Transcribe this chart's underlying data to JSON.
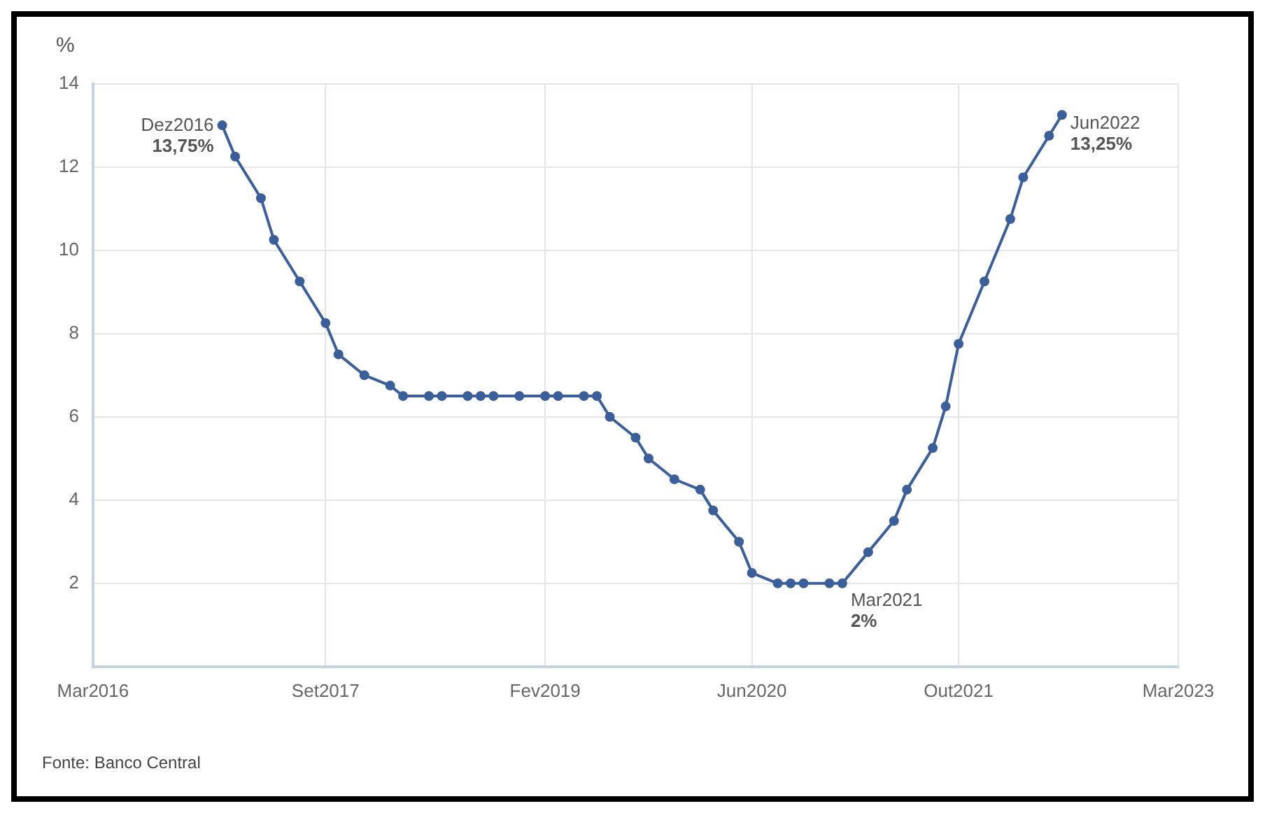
{
  "chart_data": {
    "type": "line",
    "ylabel": "%",
    "x": [
      "2017-01",
      "2017-02",
      "2017-04",
      "2017-05",
      "2017-07",
      "2017-09",
      "2017-10",
      "2017-12",
      "2018-02",
      "2018-03",
      "2018-05",
      "2018-06",
      "2018-08",
      "2018-09",
      "2018-10",
      "2018-12",
      "2019-02",
      "2019-03",
      "2019-05",
      "2019-06",
      "2019-07",
      "2019-09",
      "2019-10",
      "2019-12",
      "2020-02",
      "2020-03",
      "2020-05",
      "2020-06",
      "2020-08",
      "2020-09",
      "2020-10",
      "2020-12",
      "2021-01",
      "2021-03",
      "2021-05",
      "2021-06",
      "2021-08",
      "2021-09",
      "2021-10",
      "2021-12",
      "2022-02",
      "2022-03",
      "2022-05",
      "2022-06"
    ],
    "series": [
      {
        "color": "#3a5f9a",
        "values": [
          13,
          12.25,
          11.25,
          10.25,
          9.25,
          8.25,
          7.5,
          7,
          6.75,
          6.5,
          6.5,
          6.5,
          6.5,
          6.5,
          6.5,
          6.5,
          6.5,
          6.5,
          6.5,
          6.5,
          6,
          5.5,
          5,
          4.5,
          4.25,
          3.75,
          3,
          2.25,
          2,
          2,
          2,
          2,
          2,
          2.75,
          3.5,
          4.25,
          5.25,
          6.25,
          7.75,
          9.25,
          10.75,
          11.75,
          12.75,
          13.25
        ]
      }
    ],
    "xlim": [
      "2016-03",
      "2023-03"
    ],
    "xticks": [
      {
        "value": "2016-03",
        "label": "Mar2016"
      },
      {
        "value": "2017-09",
        "label": "Set2017"
      },
      {
        "value": "2019-02",
        "label": "Fev2019"
      },
      {
        "value": "2020-06",
        "label": "Jun2020"
      },
      {
        "value": "2021-10",
        "label": "Out2021"
      },
      {
        "value": "2023-03",
        "label": "Mar2023"
      }
    ],
    "ylim": [
      0,
      14
    ],
    "yticks": [
      2,
      4,
      6,
      8,
      10,
      12,
      14
    ],
    "grid": true,
    "legend": false,
    "marker": "circle",
    "line_style": "solid",
    "annotations": [
      "Dez2016\n13,75%",
      {
        "text": "Mar2021\n2%",
        "x": "2021-01",
        "y": 2
      },
      {
        "text": "Jun2022\n13,25%",
        "x": "2022-06",
        "y": 13.25
      },
      "Fonte: Banco Central"
    ]
  }
}
